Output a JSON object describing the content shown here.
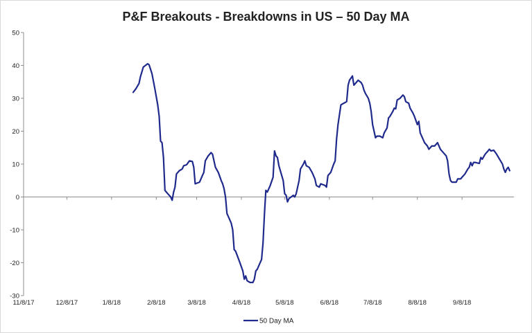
{
  "chart_data": {
    "type": "line",
    "title": "P&F Breakouts - Breakdowns in US – 50 Day MA",
    "xlabel": "",
    "ylabel": "",
    "ylim": [
      -30,
      50
    ],
    "yticks": [
      50,
      40,
      30,
      20,
      10,
      0,
      -10,
      -20,
      -30
    ],
    "xticks": [
      "11/8/17",
      "12/8/17",
      "1/8/18",
      "2/8/18",
      "3/8/18",
      "4/8/18",
      "5/8/18",
      "6/8/18",
      "7/8/18",
      "8/8/18",
      "9/8/18"
    ],
    "grid": false,
    "legend": "bottom",
    "series": [
      {
        "name": "50 Day MA",
        "color": "#1f2a8c",
        "points": [
          [
            "2018-01-23",
            31.8
          ],
          [
            "2018-01-25",
            33.0
          ],
          [
            "2018-01-27",
            34.5
          ],
          [
            "2018-01-28",
            36.5
          ],
          [
            "2018-01-30",
            39.5
          ],
          [
            "2018-02-02",
            40.5
          ],
          [
            "2018-02-03",
            40.2
          ],
          [
            "2018-02-05",
            37.5
          ],
          [
            "2018-02-07",
            33.0
          ],
          [
            "2018-02-09",
            28.0
          ],
          [
            "2018-02-10",
            24.5
          ],
          [
            "2018-02-11",
            17.0
          ],
          [
            "2018-02-12",
            16.5
          ],
          [
            "2018-02-13",
            12.0
          ],
          [
            "2018-02-14",
            2.0
          ],
          [
            "2018-02-16",
            1.0
          ],
          [
            "2018-02-18",
            0.0
          ],
          [
            "2018-02-19",
            -1.0
          ],
          [
            "2018-02-20",
            1.5
          ],
          [
            "2018-02-21",
            3.0
          ],
          [
            "2018-02-22",
            7.0
          ],
          [
            "2018-02-24",
            8.0
          ],
          [
            "2018-02-26",
            8.5
          ],
          [
            "2018-02-27",
            9.5
          ],
          [
            "2018-03-01",
            9.8
          ],
          [
            "2018-03-03",
            11.0
          ],
          [
            "2018-03-05",
            10.8
          ],
          [
            "2018-03-06",
            9.0
          ],
          [
            "2018-03-07",
            4.0
          ],
          [
            "2018-03-10",
            4.5
          ],
          [
            "2018-03-12",
            6.5
          ],
          [
            "2018-03-13",
            7.5
          ],
          [
            "2018-03-14",
            11.0
          ],
          [
            "2018-03-16",
            12.5
          ],
          [
            "2018-03-18",
            13.5
          ],
          [
            "2018-03-19",
            13.0
          ],
          [
            "2018-03-21",
            9.0
          ],
          [
            "2018-03-23",
            7.5
          ],
          [
            "2018-03-25",
            5.0
          ],
          [
            "2018-03-26",
            4.0
          ],
          [
            "2018-03-27",
            2.5
          ],
          [
            "2018-03-28",
            0.0
          ],
          [
            "2018-03-29",
            -5.0
          ],
          [
            "2018-03-31",
            -7.0
          ],
          [
            "2018-04-01",
            -8.0
          ],
          [
            "2018-04-02",
            -10.0
          ],
          [
            "2018-04-03",
            -16.0
          ],
          [
            "2018-04-04",
            -16.5
          ],
          [
            "2018-04-07",
            -20.0
          ],
          [
            "2018-04-09",
            -22.5
          ],
          [
            "2018-04-10",
            -25.0
          ],
          [
            "2018-04-11",
            -24.0
          ],
          [
            "2018-04-12",
            -25.5
          ],
          [
            "2018-04-14",
            -26.0
          ],
          [
            "2018-04-16",
            -26.0
          ],
          [
            "2018-04-17",
            -25.0
          ],
          [
            "2018-04-18",
            -22.5
          ],
          [
            "2018-04-19",
            -22.0
          ],
          [
            "2018-04-21",
            -20.0
          ],
          [
            "2018-04-22",
            -19.0
          ],
          [
            "2018-04-23",
            -14.0
          ],
          [
            "2018-04-24",
            -5.0
          ],
          [
            "2018-04-25",
            2.0
          ],
          [
            "2018-04-26",
            1.5
          ],
          [
            "2018-04-28",
            3.5
          ],
          [
            "2018-04-30",
            6.0
          ],
          [
            "2018-05-01",
            14.0
          ],
          [
            "2018-05-02",
            12.5
          ],
          [
            "2018-05-03",
            12.0
          ],
          [
            "2018-05-04",
            9.5
          ],
          [
            "2018-05-06",
            6.5
          ],
          [
            "2018-05-07",
            5.0
          ],
          [
            "2018-05-08",
            1.0
          ],
          [
            "2018-05-09",
            0.5
          ],
          [
            "2018-05-10",
            -1.5
          ],
          [
            "2018-05-11",
            -0.5
          ],
          [
            "2018-05-14",
            0.5
          ],
          [
            "2018-05-15",
            0.0
          ],
          [
            "2018-05-16",
            1.0
          ],
          [
            "2018-05-18",
            5.0
          ],
          [
            "2018-05-19",
            8.5
          ],
          [
            "2018-05-21",
            10.0
          ],
          [
            "2018-05-22",
            11.0
          ],
          [
            "2018-05-23",
            9.5
          ],
          [
            "2018-05-25",
            9.0
          ],
          [
            "2018-05-27",
            7.5
          ],
          [
            "2018-05-29",
            5.5
          ],
          [
            "2018-05-30",
            3.5
          ],
          [
            "2018-06-01",
            3.0
          ],
          [
            "2018-06-02",
            4.0
          ],
          [
            "2018-06-05",
            3.5
          ],
          [
            "2018-06-06",
            3.0
          ],
          [
            "2018-06-07",
            6.5
          ],
          [
            "2018-06-09",
            7.5
          ],
          [
            "2018-06-11",
            10.0
          ],
          [
            "2018-06-12",
            11.0
          ],
          [
            "2018-06-13",
            17.5
          ],
          [
            "2018-06-14",
            22.0
          ],
          [
            "2018-06-15",
            25.0
          ],
          [
            "2018-06-16",
            28.0
          ],
          [
            "2018-06-18",
            28.5
          ],
          [
            "2018-06-20",
            29.0
          ],
          [
            "2018-06-21",
            34.0
          ],
          [
            "2018-06-22",
            35.5
          ],
          [
            "2018-06-24",
            36.8
          ],
          [
            "2018-06-25",
            34.0
          ],
          [
            "2018-06-26",
            34.5
          ],
          [
            "2018-06-28",
            35.5
          ],
          [
            "2018-06-30",
            34.8
          ],
          [
            "2018-07-01",
            34.0
          ],
          [
            "2018-07-02",
            32.5
          ],
          [
            "2018-07-03",
            31.5
          ],
          [
            "2018-07-05",
            30.0
          ],
          [
            "2018-07-06",
            28.5
          ],
          [
            "2018-07-07",
            26.0
          ],
          [
            "2018-07-08",
            22.0
          ],
          [
            "2018-07-09",
            20.0
          ],
          [
            "2018-07-10",
            18.0
          ],
          [
            "2018-07-11",
            18.5
          ],
          [
            "2018-07-13",
            18.5
          ],
          [
            "2018-07-15",
            18.0
          ],
          [
            "2018-07-16",
            19.5
          ],
          [
            "2018-07-18",
            21.0
          ],
          [
            "2018-07-19",
            24.0
          ],
          [
            "2018-07-20",
            24.5
          ],
          [
            "2018-07-22",
            26.0
          ],
          [
            "2018-07-23",
            27.0
          ],
          [
            "2018-07-24",
            26.8
          ],
          [
            "2018-07-25",
            29.5
          ],
          [
            "2018-07-27",
            30.0
          ],
          [
            "2018-07-29",
            31.0
          ],
          [
            "2018-07-30",
            30.5
          ],
          [
            "2018-07-31",
            29.0
          ],
          [
            "2018-08-02",
            28.5
          ],
          [
            "2018-08-03",
            27.0
          ],
          [
            "2018-08-05",
            25.5
          ],
          [
            "2018-08-06",
            24.5
          ],
          [
            "2018-08-08",
            22.0
          ],
          [
            "2018-08-09",
            23.0
          ],
          [
            "2018-08-10",
            19.5
          ],
          [
            "2018-08-11",
            18.5
          ],
          [
            "2018-08-13",
            16.5
          ],
          [
            "2018-08-15",
            15.5
          ],
          [
            "2018-08-16",
            14.5
          ],
          [
            "2018-08-17",
            15.0
          ],
          [
            "2018-08-18",
            15.5
          ],
          [
            "2018-08-20",
            15.5
          ],
          [
            "2018-08-22",
            16.5
          ],
          [
            "2018-08-23",
            15.5
          ],
          [
            "2018-08-24",
            14.5
          ],
          [
            "2018-08-27",
            13.0
          ],
          [
            "2018-08-28",
            12.5
          ],
          [
            "2018-08-29",
            11.0
          ],
          [
            "2018-08-30",
            7.0
          ],
          [
            "2018-08-31",
            5.0
          ],
          [
            "2018-09-01",
            4.5
          ],
          [
            "2018-09-04",
            4.5
          ],
          [
            "2018-09-05",
            5.5
          ],
          [
            "2018-09-07",
            5.5
          ],
          [
            "2018-09-08",
            6.0
          ],
          [
            "2018-09-10",
            7.0
          ],
          [
            "2018-09-12",
            8.5
          ],
          [
            "2018-09-13",
            9.0
          ],
          [
            "2018-09-14",
            10.5
          ],
          [
            "2018-09-15",
            9.5
          ],
          [
            "2018-09-16",
            10.5
          ],
          [
            "2018-09-17",
            10.5
          ],
          [
            "2018-09-19",
            10.3
          ],
          [
            "2018-09-20",
            10.2
          ],
          [
            "2018-09-21",
            12.0
          ],
          [
            "2018-09-22",
            11.5
          ],
          [
            "2018-09-24",
            13.0
          ],
          [
            "2018-09-26",
            14.0
          ],
          [
            "2018-09-27",
            14.5
          ],
          [
            "2018-09-28",
            14.0
          ],
          [
            "2018-09-30",
            14.2
          ],
          [
            "2018-10-02",
            13.0
          ],
          [
            "2018-10-04",
            11.5
          ],
          [
            "2018-10-06",
            10.0
          ],
          [
            "2018-10-07",
            8.5
          ],
          [
            "2018-10-08",
            7.5
          ],
          [
            "2018-10-09",
            8.5
          ],
          [
            "2018-10-10",
            9.0
          ],
          [
            "2018-10-11",
            8.0
          ]
        ]
      }
    ]
  }
}
